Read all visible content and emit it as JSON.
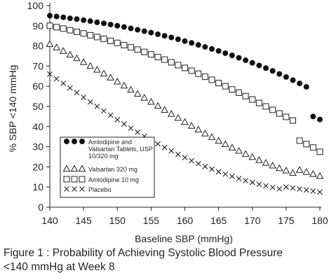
{
  "chart_data": {
    "type": "scatter",
    "ylabel": "% SBP <140 mmHg",
    "xlabel": "Baseline SBP (mmHg)",
    "xlim": [
      140,
      180
    ],
    "ylim": [
      0,
      100
    ],
    "x_ticks": [
      140,
      145,
      150,
      155,
      160,
      165,
      170,
      175,
      180
    ],
    "y_ticks": [
      0,
      10,
      20,
      30,
      40,
      50,
      60,
      70,
      80,
      90,
      100
    ],
    "grid": false,
    "legend_position": "bottom-left",
    "series": [
      {
        "name": "Amlodipine and Valsartan Tablets, USP 10/320 mg",
        "legend_lines": [
          "Amlodipine and",
          "Valsartan Tablets, USP",
          "10/320 mg"
        ],
        "marker": "filled-circle",
        "x": [
          140,
          141,
          142,
          143,
          144,
          145,
          146,
          147,
          148,
          149,
          150,
          151,
          152,
          153,
          154,
          155,
          156,
          157,
          158,
          159,
          160,
          161,
          162,
          163,
          164,
          165,
          166,
          167,
          168,
          169,
          170,
          171,
          172,
          173,
          174,
          175,
          176,
          177,
          178,
          179,
          180
        ],
        "y": [
          95,
          94.6,
          94.2,
          93.7,
          93.3,
          92.8,
          92.3,
          91.7,
          91.2,
          90.6,
          90,
          89.4,
          88.7,
          88,
          87.3,
          86.6,
          85.8,
          85,
          84.2,
          83.3,
          82.4,
          81.5,
          80.5,
          79.5,
          78.5,
          77.5,
          76.4,
          75.3,
          74.1,
          72.9,
          71.6,
          70.3,
          69,
          67.6,
          66.1,
          64.6,
          63,
          61.4,
          59.7,
          45,
          43.5
        ]
      },
      {
        "name": "Valsartan 320 mg",
        "marker": "open-triangle",
        "x": [
          140,
          141,
          142,
          143,
          144,
          145,
          146,
          147,
          148,
          149,
          150,
          151,
          152,
          153,
          154,
          155,
          156,
          157,
          158,
          159,
          160,
          161,
          162,
          163,
          164,
          165,
          166,
          167,
          168,
          169,
          170,
          171,
          172,
          173,
          174,
          175,
          176,
          177,
          178,
          179,
          180
        ],
        "y": [
          81,
          79.3,
          77.5,
          75.7,
          73.9,
          72,
          70.1,
          68.2,
          66.3,
          64.3,
          62.3,
          60.3,
          58.3,
          56.3,
          54.3,
          52.3,
          50.3,
          48.3,
          46.3,
          44.3,
          42.3,
          40.4,
          38.5,
          36.6,
          34.8,
          33,
          31.3,
          29.6,
          28,
          26.4,
          24.9,
          23.4,
          22,
          20.7,
          19.4,
          18.2,
          17,
          18.5,
          17.5,
          16.5,
          15.5
        ]
      },
      {
        "name": "Amlodipine 10 mg",
        "marker": "open-square",
        "x": [
          140,
          141,
          142,
          143,
          144,
          145,
          146,
          147,
          148,
          149,
          150,
          151,
          152,
          153,
          154,
          155,
          156,
          157,
          158,
          159,
          160,
          161,
          162,
          163,
          164,
          165,
          166,
          167,
          168,
          169,
          170,
          171,
          172,
          173,
          174,
          175,
          176,
          177,
          178,
          179,
          180
        ],
        "y": [
          90,
          89.3,
          88.6,
          87.8,
          87,
          86.2,
          85.3,
          84.4,
          83.5,
          82.5,
          81.5,
          80.4,
          79.3,
          78.2,
          77,
          75.8,
          74.5,
          73.2,
          71.9,
          70.5,
          69.1,
          67.7,
          66.2,
          64.7,
          63.2,
          61.6,
          60,
          58.4,
          56.8,
          55.1,
          53.4,
          51.7,
          50,
          48.3,
          46.5,
          44.8,
          43,
          33,
          31.3,
          29.6,
          27.5
        ]
      },
      {
        "name": "Placebo",
        "marker": "x-cross",
        "x": [
          140,
          141,
          142,
          143,
          144,
          145,
          146,
          147,
          148,
          149,
          150,
          151,
          152,
          153,
          154,
          155,
          156,
          157,
          158,
          159,
          160,
          161,
          162,
          163,
          164,
          165,
          166,
          167,
          168,
          169,
          170,
          171,
          172,
          173,
          174,
          175,
          176,
          177,
          178,
          179,
          180
        ],
        "y": [
          66,
          63.7,
          61.4,
          59.1,
          56.8,
          54.5,
          52.2,
          50,
          47.8,
          45.6,
          43.4,
          41.3,
          39.2,
          37.2,
          35.2,
          33.3,
          31.4,
          29.6,
          27.9,
          26.2,
          24.6,
          23.1,
          21.6,
          20.2,
          18.9,
          17.6,
          16.4,
          15.3,
          14.2,
          13.2,
          12.3,
          11.4,
          10.6,
          9.8,
          9.1,
          10,
          9.5,
          9,
          8.5,
          8,
          7.5
        ]
      }
    ]
  },
  "caption": {
    "line1": "Figure 1 : Probability of Achieving Systolic Blood Pressure",
    "line2": "<140 mmHg at Week 8"
  }
}
